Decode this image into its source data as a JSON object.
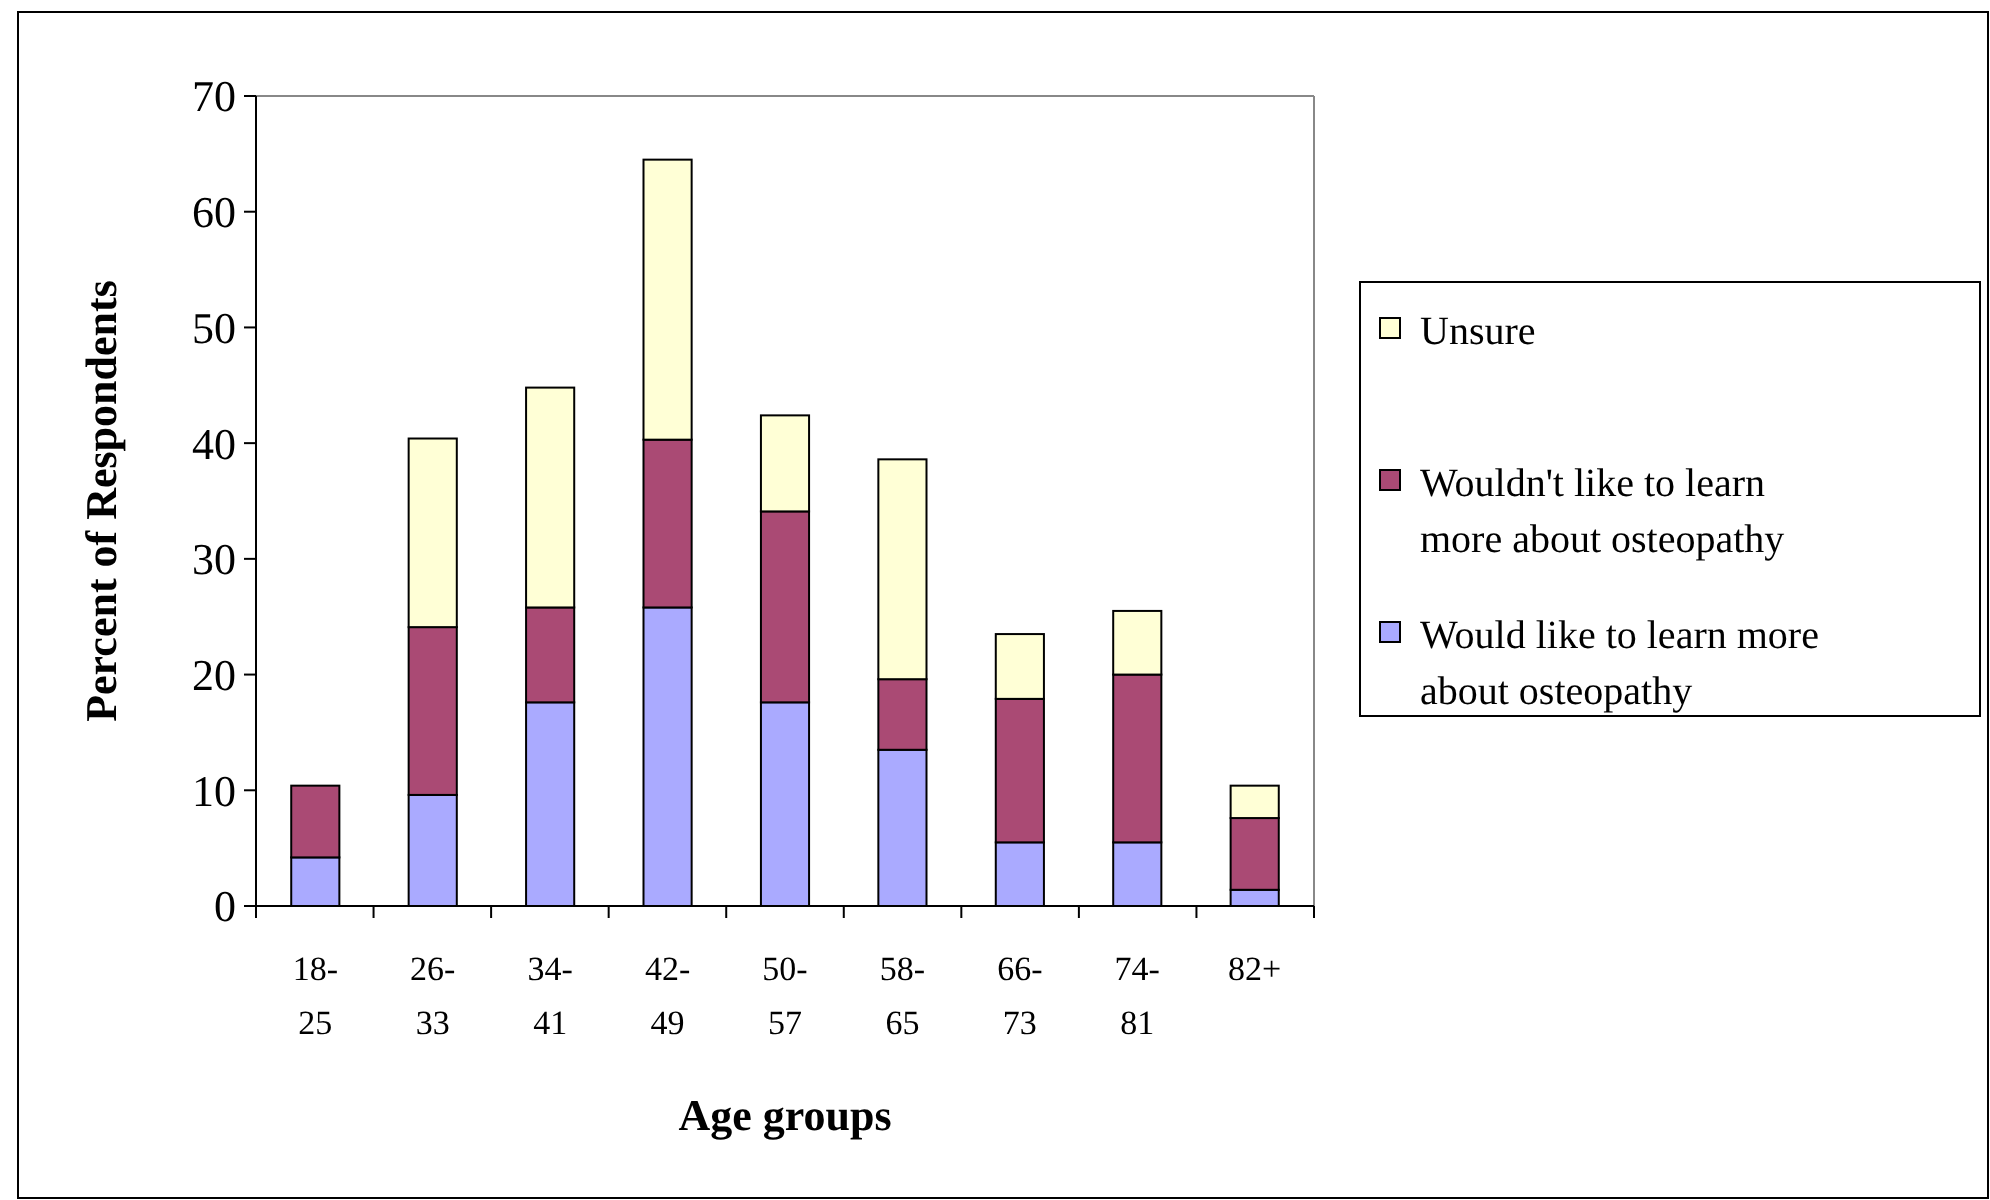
{
  "chart_data": {
    "type": "bar",
    "stacked": true,
    "xlabel": "Age groups",
    "ylabel": "Percent of Respondents",
    "categories": [
      "18-25",
      "26-33",
      "34-41",
      "42-49",
      "50-57",
      "58-65",
      "66-73",
      "74-81",
      "82+"
    ],
    "series": [
      {
        "name": "Would like to learn more about osteopathy",
        "color": "#aaaaff",
        "values": [
          4.2,
          9.6,
          17.6,
          25.8,
          17.6,
          13.5,
          5.5,
          5.5,
          1.4
        ]
      },
      {
        "name": "Wouldn't like to learn more about osteopathy",
        "color": "#aa4a74",
        "values": [
          6.2,
          14.5,
          8.2,
          14.5,
          16.5,
          6.1,
          12.4,
          14.5,
          6.2
        ]
      },
      {
        "name": "Unsure",
        "color": "#ffffd6",
        "values": [
          null,
          16.3,
          19.0,
          24.2,
          8.3,
          19.0,
          5.6,
          5.5,
          2.8
        ]
      }
    ],
    "ylim": [
      0,
      70
    ],
    "yticks": [
      0,
      10,
      20,
      30,
      40,
      50,
      60,
      70
    ],
    "grid": false,
    "legend": "right"
  }
}
